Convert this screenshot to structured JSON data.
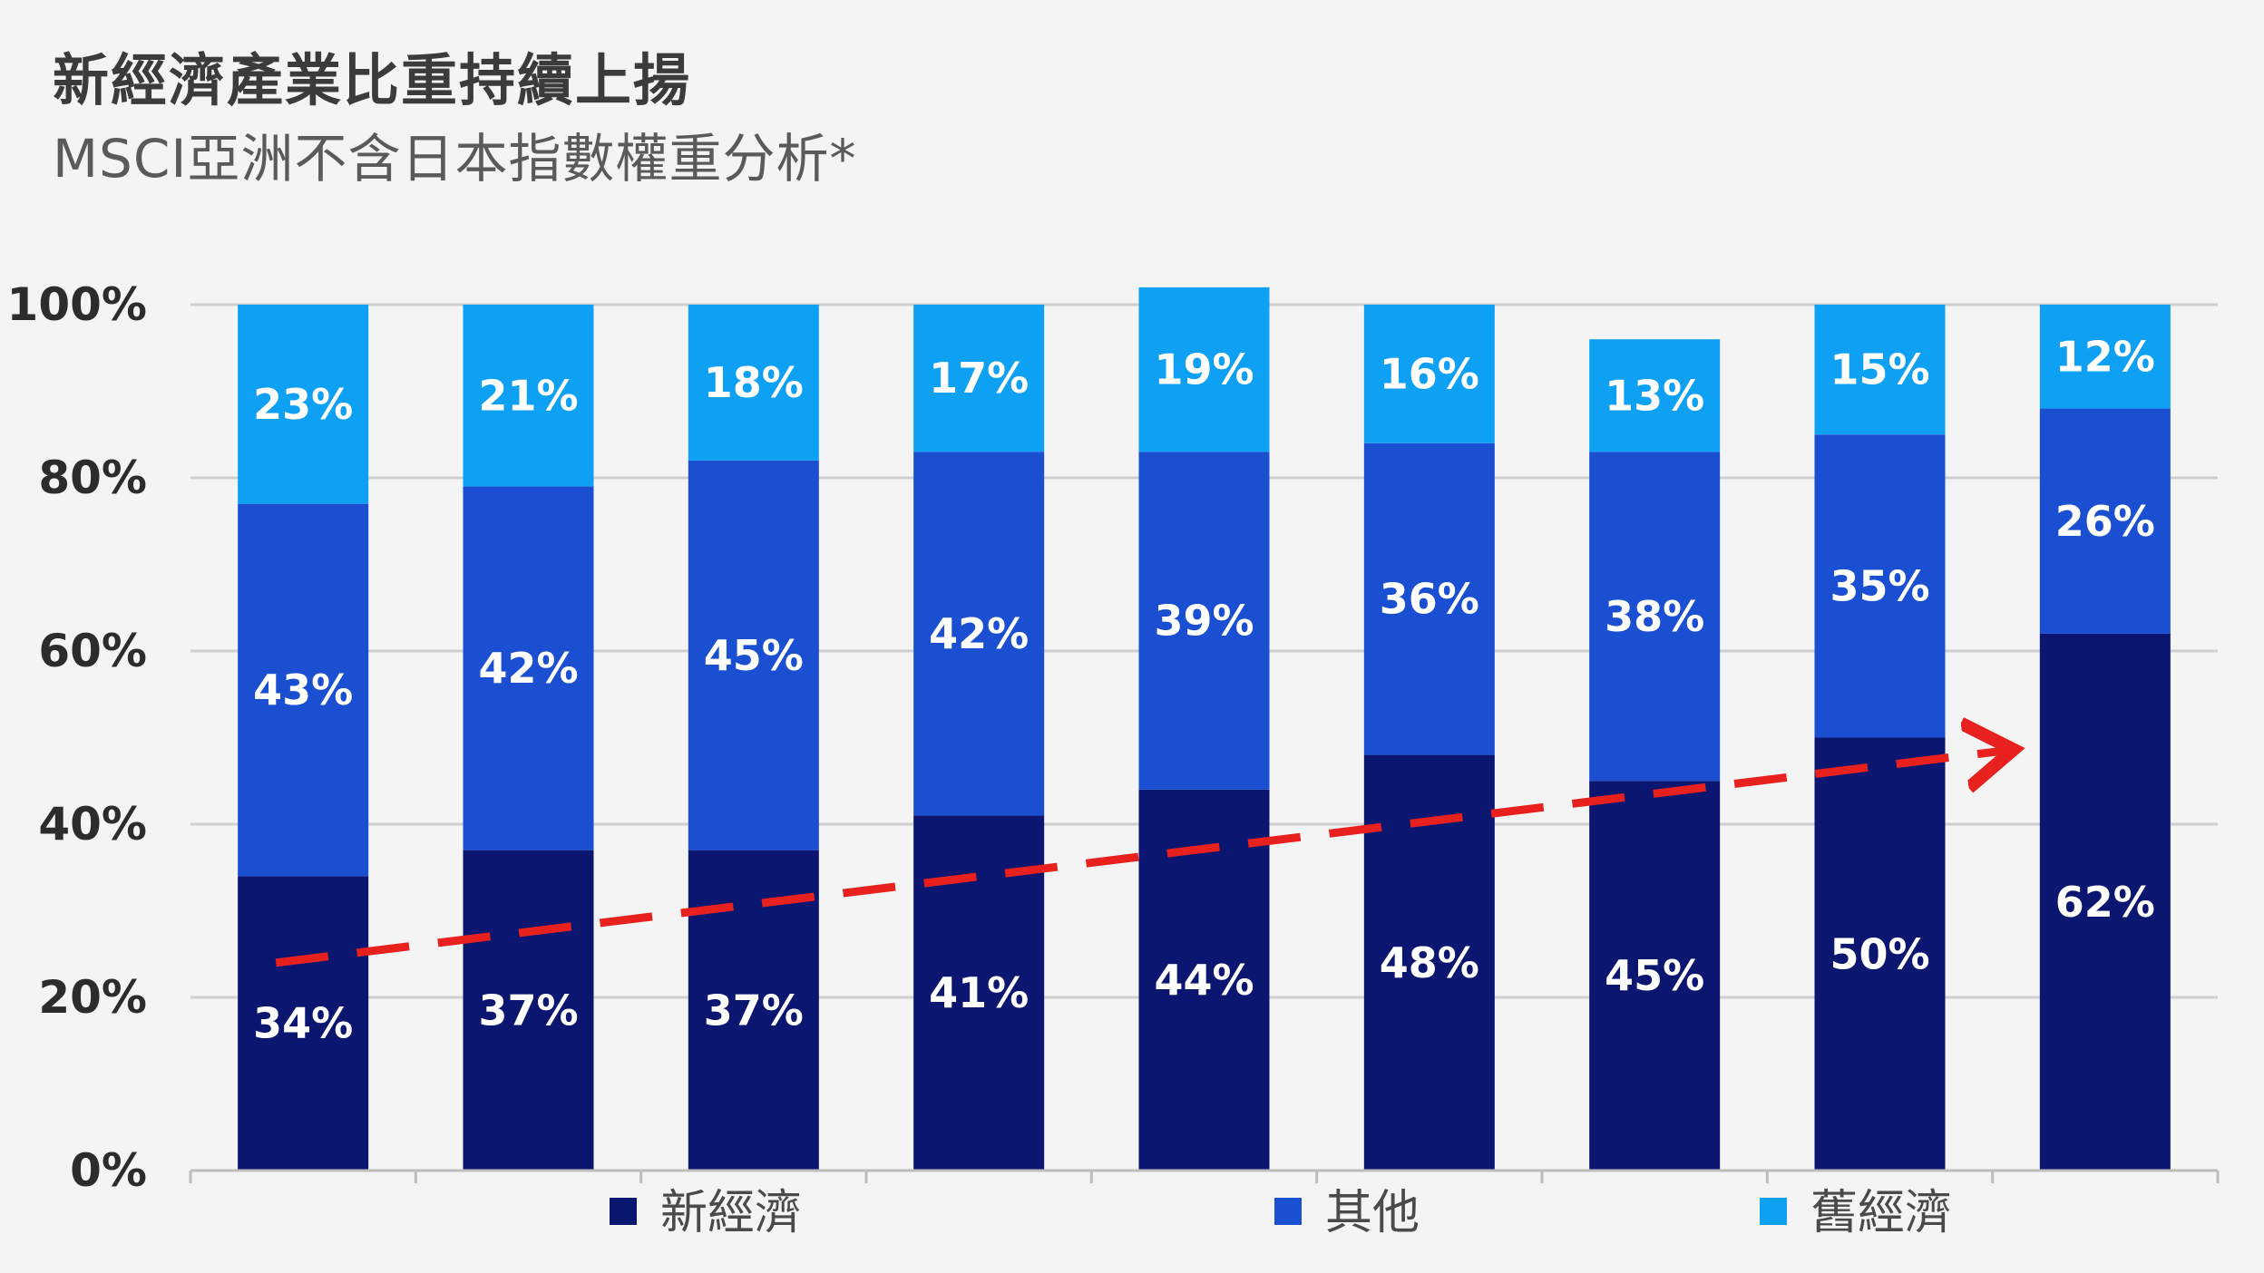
{
  "chart_data": {
    "type": "bar",
    "stacked": true,
    "title": "新經濟產業比重持續上揚",
    "subtitle": "MSCI亞洲不含日本指數權重分析*",
    "categories": [
      "",
      "",
      "",
      "",
      "",
      "",
      "",
      "",
      ""
    ],
    "series": [
      {
        "name": "新經濟",
        "color": "#0a1670",
        "values": [
          34,
          37,
          37,
          41,
          44,
          48,
          45,
          50,
          62
        ]
      },
      {
        "name": "其他",
        "color": "#1a4fd1",
        "values": [
          43,
          42,
          45,
          42,
          39,
          36,
          38,
          35,
          26
        ]
      },
      {
        "name": "舊經濟",
        "color": "#0ea0f2",
        "values": [
          23,
          21,
          18,
          17,
          19,
          16,
          13,
          15,
          12
        ]
      }
    ],
    "data_labels": [
      [
        "34%",
        "37%",
        "37%",
        "41%",
        "44%",
        "48%",
        "45%",
        "50%",
        "62%"
      ],
      [
        "43%",
        "42%",
        "45%",
        "42%",
        "39%",
        "36%",
        "38%",
        "35%",
        "26%"
      ],
      [
        "23%",
        "21%",
        "18%",
        "17%",
        "19%",
        "16%",
        "13%",
        "15%",
        "12%"
      ]
    ],
    "ylim": [
      0,
      100
    ],
    "yticks": [
      "0%",
      "20%",
      "40%",
      "60%",
      "80%",
      "100%"
    ],
    "grid": true,
    "legend_position": "bottom",
    "trend_arrow": {
      "from_value": 24,
      "to_value": 48.5,
      "color": "#e8211f",
      "style": "dashed"
    }
  }
}
